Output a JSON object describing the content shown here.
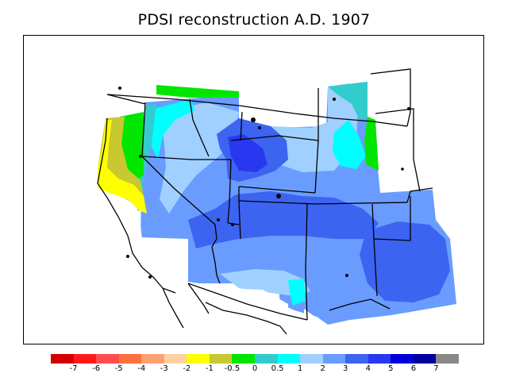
{
  "title": "PDSI reconstruction A.D. 1907",
  "colorbar": {
    "colors": [
      "#d40000",
      "#ff1a1a",
      "#ff4d4d",
      "#ff7040",
      "#ffa070",
      "#ffd0a0",
      "#ffff00",
      "#c8c830",
      "#00e600",
      "#33cccc",
      "#00ffff",
      "#a0d0ff",
      "#6a9cff",
      "#3c64f0",
      "#2838f0",
      "#0000d8",
      "#0000a0",
      "#888888"
    ],
    "labels": [
      "-7",
      "-6",
      "-5",
      "-4",
      "-3",
      "-2",
      "-1",
      "-0.5",
      "0",
      "0.5",
      "1",
      "2",
      "3",
      "4",
      "5",
      "6",
      "7"
    ]
  },
  "legend_colors": {
    "land_bg": "#ffffff",
    "border": "#000000"
  }
}
